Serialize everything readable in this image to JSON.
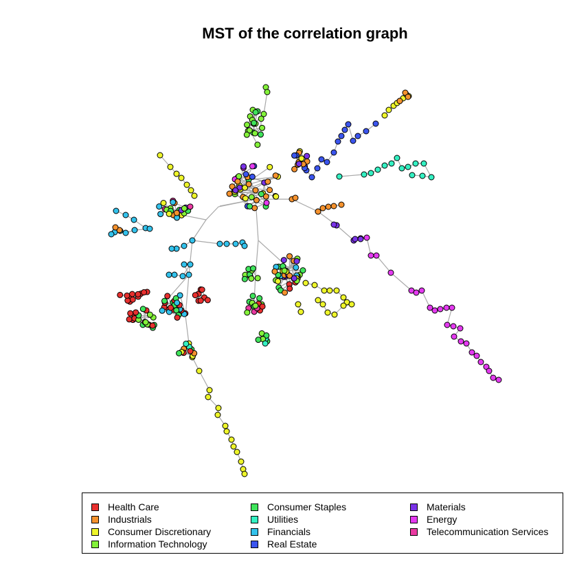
{
  "title": "MST of the correlation graph",
  "legend": {
    "items": [
      {
        "label": "Health Care",
        "color": "#e8302f"
      },
      {
        "label": "Industrials",
        "color": "#f5922e"
      },
      {
        "label": "Consumer Discretionary",
        "color": "#eef52a"
      },
      {
        "label": "Information Technology",
        "color": "#84f23a"
      },
      {
        "label": "Consumer Staples",
        "color": "#3fe45b"
      },
      {
        "label": "Utilities",
        "color": "#34f0c2"
      },
      {
        "label": "Financials",
        "color": "#33c2ec"
      },
      {
        "label": "Real Estate",
        "color": "#3b55ee"
      },
      {
        "label": "Materials",
        "color": "#7a33e8"
      },
      {
        "label": "Energy",
        "color": "#e43af0"
      },
      {
        "label": "Telecommunication Services",
        "color": "#ea3aa2"
      }
    ]
  }
}
